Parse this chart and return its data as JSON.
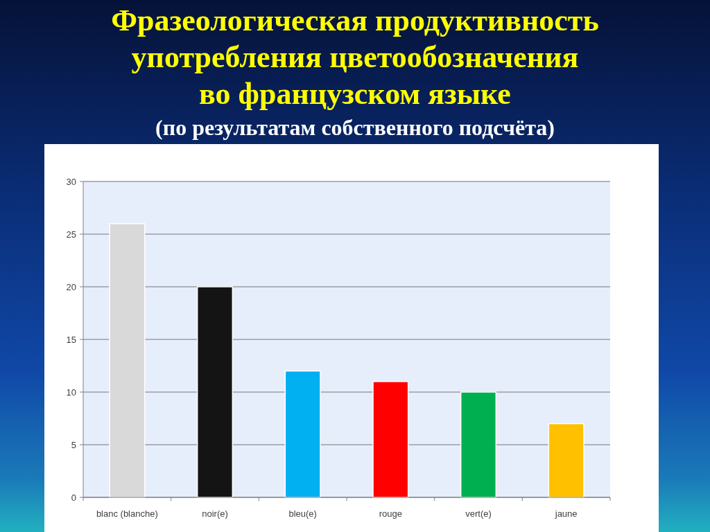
{
  "chart_data": {
    "type": "bar",
    "title": "Фразеологическая продуктивность\nупотребления цветообозначения\nво французском языке",
    "subtitle": "(по результатам собственного подсчёта)",
    "categories": [
      "blanc (blanche)",
      "noir(e)",
      "bleu(e)",
      "rouge",
      "vert(e)",
      "jaune"
    ],
    "values": [
      26,
      20,
      12,
      11,
      10,
      7
    ],
    "colors": [
      "#d9d9d9",
      "#141414",
      "#00b0f0",
      "#ff0000",
      "#00b050",
      "#ffc000"
    ],
    "ylim": [
      0,
      30
    ],
    "yticks": [
      0,
      5,
      10,
      15,
      20,
      25,
      30
    ],
    "grid": "y"
  }
}
